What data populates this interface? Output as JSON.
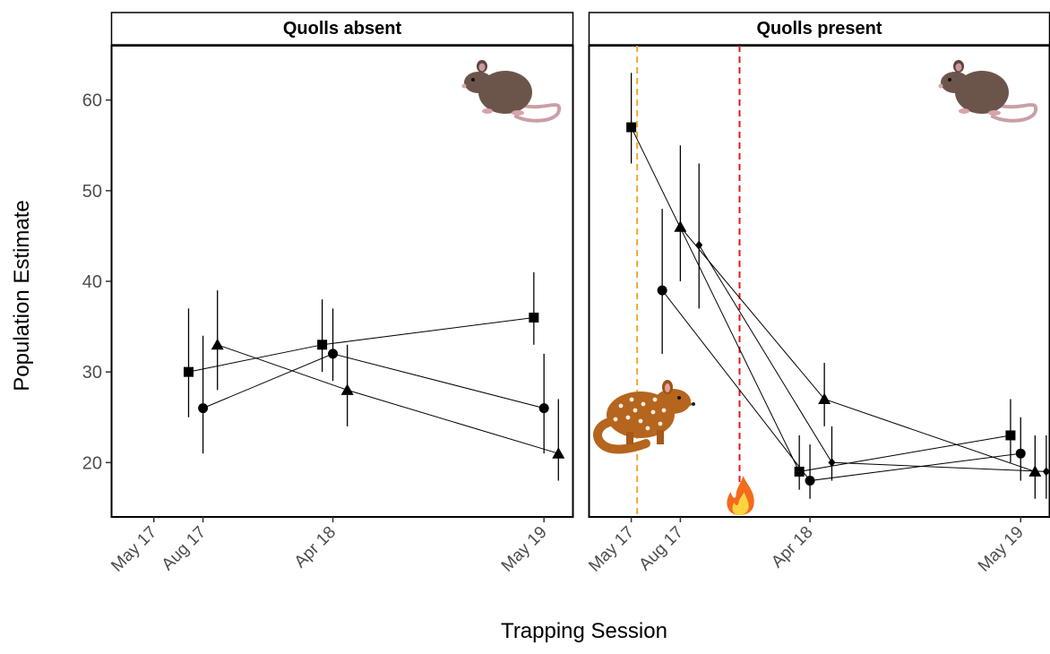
{
  "chart_data": {
    "type": "line",
    "xlabel": "Trapping Session",
    "ylabel": "Population Estimate",
    "ylim": [
      14,
      66
    ],
    "yticks": [
      20,
      30,
      40,
      50,
      60
    ],
    "x_date_ticks": [
      {
        "label": "May 17",
        "date": "2017-05-01"
      },
      {
        "label": "Aug 17",
        "date": "2017-08-01"
      },
      {
        "label": "Apr 18",
        "date": "2018-04-01"
      },
      {
        "label": "May 19",
        "date": "2019-05-01"
      }
    ],
    "xlim": [
      "2017-02-10",
      "2019-06-25"
    ],
    "grid": false,
    "legend": "none",
    "panels": [
      {
        "title": "Quolls absent",
        "icons": [
          "rat-icon"
        ],
        "series": [
          {
            "marker": "square",
            "points": [
              {
                "x": "2017-07-05",
                "y": 30,
                "low": 25,
                "high": 37
              },
              {
                "x": "2018-03-12",
                "y": 33,
                "low": 30,
                "high": 38
              },
              {
                "x": "2019-04-12",
                "y": 36,
                "low": 33,
                "high": 41
              }
            ]
          },
          {
            "marker": "circle",
            "points": [
              {
                "x": "2017-08-01",
                "y": 26,
                "low": 21,
                "high": 34
              },
              {
                "x": "2018-04-01",
                "y": 32,
                "low": 29,
                "high": 37
              },
              {
                "x": "2019-05-01",
                "y": 26,
                "low": 21,
                "high": 32
              }
            ]
          },
          {
            "marker": "triangle",
            "points": [
              {
                "x": "2017-08-28",
                "y": 33,
                "low": 28,
                "high": 39
              },
              {
                "x": "2018-04-28",
                "y": 28,
                "low": 24,
                "high": 33
              },
              {
                "x": "2019-05-28",
                "y": 21,
                "low": 18,
                "high": 27
              }
            ]
          }
        ]
      },
      {
        "title": "Quolls present",
        "icons": [
          "rat-icon",
          "quoll-icon",
          "fire-icon"
        ],
        "events": [
          {
            "date": "2017-05-12",
            "color": "#f0a830"
          },
          {
            "date": "2017-11-20",
            "color": "#e8161c"
          }
        ],
        "series": [
          {
            "marker": "square",
            "points": [
              {
                "x": "2017-05-01",
                "y": 57,
                "low": 53,
                "high": 63
              },
              {
                "x": "2018-03-12",
                "y": 19,
                "low": 17,
                "high": 23
              },
              {
                "x": "2019-04-12",
                "y": 23,
                "low": 20,
                "high": 27
              }
            ]
          },
          {
            "marker": "circle",
            "points": [
              {
                "x": "2017-06-28",
                "y": 39,
                "low": 32,
                "high": 48
              },
              {
                "x": "2018-04-01",
                "y": 18,
                "low": 16,
                "high": 22
              },
              {
                "x": "2019-05-01",
                "y": 21,
                "low": 18,
                "high": 25
              }
            ]
          },
          {
            "marker": "triangle",
            "points": [
              {
                "x": "2017-08-01",
                "y": 46,
                "low": 40,
                "high": 55
              },
              {
                "x": "2018-04-28",
                "y": 27,
                "low": 24,
                "high": 31
              },
              {
                "x": "2019-05-28",
                "y": 19,
                "low": 16,
                "high": 23
              }
            ]
          },
          {
            "marker": "diamond",
            "points": [
              {
                "x": "2017-09-05",
                "y": 44,
                "low": 37,
                "high": 53
              },
              {
                "x": "2018-05-12",
                "y": 20,
                "low": 18,
                "high": 24
              },
              {
                "x": "2019-06-18",
                "y": 19,
                "low": 16,
                "high": 23
              }
            ]
          }
        ]
      }
    ]
  }
}
